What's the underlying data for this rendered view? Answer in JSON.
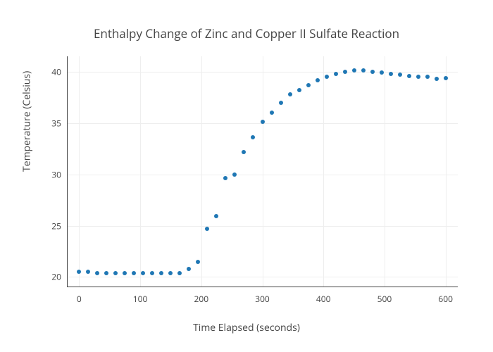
{
  "chart": {
    "type": "scatter",
    "title": "Enthalpy Change of Zinc and Copper II Sulfate Reaction",
    "title_fontsize": 17,
    "title_color": "#444444",
    "xlabel": "Time Elapsed (seconds)",
    "ylabel": "Temperature (Celsius)",
    "label_fontsize": 14,
    "label_color": "#444444",
    "tick_fontsize": 12,
    "tick_color": "#444444",
    "background_color": "#ffffff",
    "grid_color": "#eeeeee",
    "axis_line_color": "#444444",
    "marker_color": "#1f77b4",
    "marker_size": 6,
    "xlim": [
      -20,
      620
    ],
    "ylim": [
      19,
      41.5
    ],
    "xticks": [
      0,
      100,
      200,
      300,
      400,
      500,
      600
    ],
    "yticks": [
      20,
      25,
      30,
      35,
      40
    ],
    "xtick_labels": [
      "0",
      "100",
      "200",
      "300",
      "400",
      "500",
      "600"
    ],
    "ytick_labels": [
      "20",
      "25",
      "30",
      "35",
      "40"
    ],
    "data": {
      "x": [
        0,
        15,
        30,
        45,
        60,
        75,
        90,
        105,
        120,
        135,
        150,
        165,
        180,
        195,
        210,
        225,
        240,
        255,
        270,
        285,
        300,
        315,
        330,
        345,
        360,
        375,
        390,
        405,
        420,
        435,
        450,
        465,
        480,
        495,
        510,
        525,
        540,
        555,
        570,
        585,
        600
      ],
      "y": [
        20.5,
        20.5,
        20.4,
        20.4,
        20.4,
        20.4,
        20.4,
        20.4,
        20.4,
        20.4,
        20.4,
        20.4,
        20.8,
        21.5,
        24.7,
        25.9,
        29.6,
        30.0,
        32.2,
        33.6,
        35.1,
        36.0,
        37.0,
        37.8,
        38.2,
        38.7,
        39.2,
        39.5,
        39.8,
        40.0,
        40.1,
        40.1,
        40.0,
        39.9,
        39.8,
        39.7,
        39.6,
        39.5,
        39.5,
        39.3,
        39.4
      ]
    }
  }
}
